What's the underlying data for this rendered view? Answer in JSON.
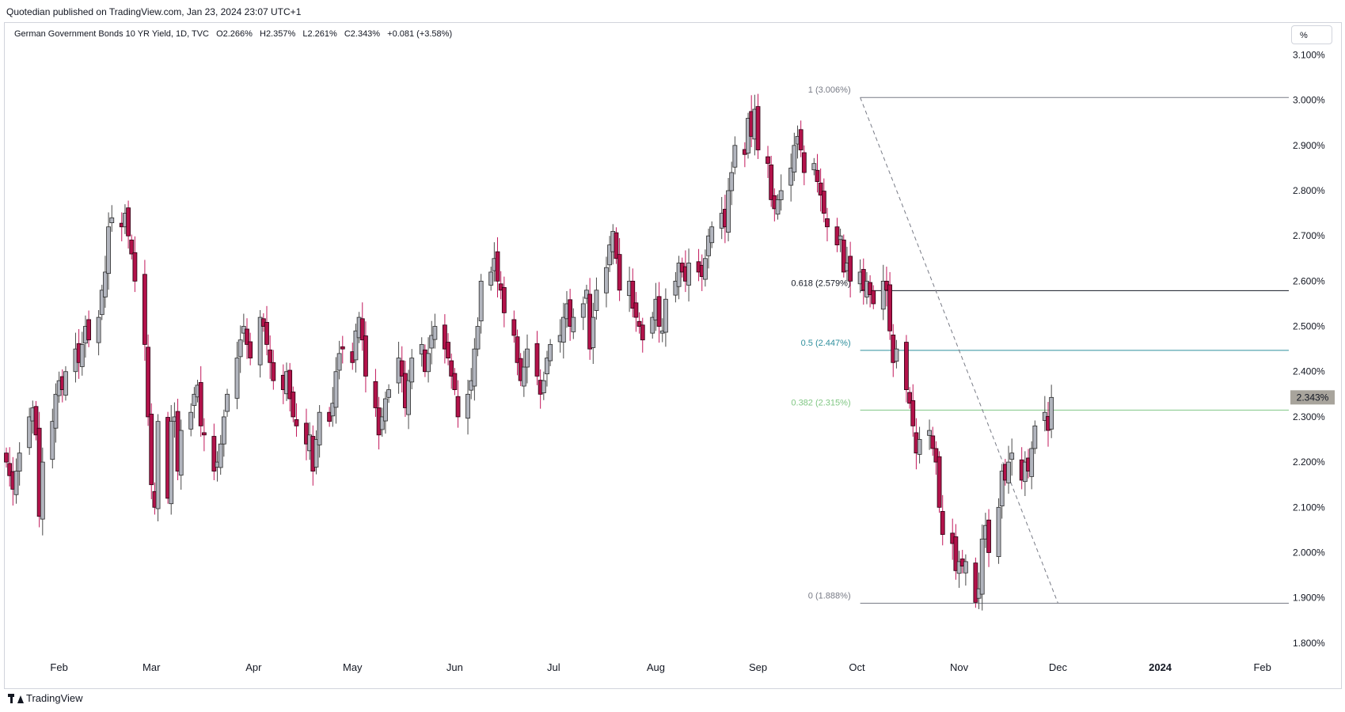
{
  "header": {
    "published": "Quotedian published on TradingView.com, Jan 23, 2024 23:07 UTC+1"
  },
  "legend": {
    "title": "German Government Bonds 10 YR Yield, 1D, TVC",
    "open": "O2.266%",
    "high": "H2.357%",
    "low": "L2.261%",
    "close": "C2.343%",
    "change": "+0.081 (+3.58%)"
  },
  "unit_button": "%",
  "brand": "TradingView",
  "colors": {
    "up_body": "#b2b5be",
    "down_body": "#b2124a",
    "down_wick": "#c2185b",
    "grid_line": "#787b86",
    "fib_half": "#2f8f9d",
    "fib_382": "#81c784",
    "price_tag": "#a8a49c"
  },
  "chart_data": {
    "type": "candlestick",
    "title": "German Government Bonds 10 YR Yield, 1D, TVC",
    "y_unit": "%",
    "ylim": [
      1.77,
      3.12
    ],
    "y_ticks": [
      "3.100%",
      "3.000%",
      "2.900%",
      "2.800%",
      "2.700%",
      "2.600%",
      "2.500%",
      "2.400%",
      "2.300%",
      "2.200%",
      "2.100%",
      "2.000%",
      "1.900%",
      "1.800%"
    ],
    "y_tick_values": [
      3.1,
      3.0,
      2.9,
      2.8,
      2.7,
      2.6,
      2.5,
      2.4,
      2.3,
      2.2,
      2.1,
      2.0,
      1.9,
      1.8
    ],
    "x_range": [
      "2023-01-16",
      "2024-02-09"
    ],
    "x_ticks": [
      {
        "label": "Feb",
        "date": "2023-02-01",
        "bold": false
      },
      {
        "label": "Mar",
        "date": "2023-03-01",
        "bold": false
      },
      {
        "label": "Apr",
        "date": "2023-04-01",
        "bold": false
      },
      {
        "label": "May",
        "date": "2023-05-01",
        "bold": false
      },
      {
        "label": "Jun",
        "date": "2023-06-01",
        "bold": false
      },
      {
        "label": "Jul",
        "date": "2023-07-01",
        "bold": false
      },
      {
        "label": "Aug",
        "date": "2023-08-01",
        "bold": false
      },
      {
        "label": "Sep",
        "date": "2023-09-01",
        "bold": false
      },
      {
        "label": "Oct",
        "date": "2023-10-01",
        "bold": false
      },
      {
        "label": "Nov",
        "date": "2023-11-01",
        "bold": false
      },
      {
        "label": "Dec",
        "date": "2023-12-01",
        "bold": false
      },
      {
        "label": "2024",
        "date": "2024-01-01",
        "bold": true
      },
      {
        "label": "Feb",
        "date": "2024-02-01",
        "bold": false
      }
    ],
    "price_label": {
      "text": "2.343%",
      "value": 2.343
    },
    "fib_levels": [
      {
        "label": "1 (3.006%)",
        "value": 3.006,
        "color": "#787b86"
      },
      {
        "label": "0.618 (2.579%)",
        "value": 2.579,
        "color": "#131722"
      },
      {
        "label": "0.5 (2.447%)",
        "value": 2.447,
        "color": "#2f8f9d"
      },
      {
        "label": "0.382 (2.315%)",
        "value": 2.315,
        "color": "#81c784"
      },
      {
        "label": "0 (1.888%)",
        "value": 1.888,
        "color": "#787b86"
      }
    ],
    "fib_start": "2023-10-02",
    "fib_end": "2024-02-09",
    "trend_line": {
      "from": {
        "date": "2023-10-02",
        "value": 3.006
      },
      "to": {
        "date": "2023-12-01",
        "value": 1.888
      }
    },
    "candle_start": "2023-01-16",
    "closes": [
      2.2,
      2.17,
      2.14,
      2.18,
      2.22,
      2.3,
      2.32,
      2.26,
      2.08,
      2.2,
      2.29,
      2.35,
      2.38,
      2.36,
      2.4,
      2.45,
      2.42,
      2.46,
      2.5,
      2.47,
      2.52,
      2.58,
      2.62,
      2.72,
      2.74,
      2.72,
      2.75,
      2.7,
      2.66,
      2.6,
      2.46,
      2.3,
      2.15,
      2.1,
      2.29,
      2.12,
      2.29,
      2.3,
      2.18,
      2.27,
      2.31,
      2.35,
      2.37,
      2.28,
      2.26,
      2.18,
      2.2,
      2.24,
      2.3,
      2.35,
      2.43,
      2.47,
      2.5,
      2.46,
      2.43,
      2.52,
      2.5,
      2.46,
      2.42,
      2.38,
      2.36,
      2.4,
      2.34,
      2.3,
      2.28,
      2.24,
      2.26,
      2.18,
      2.25,
      2.31,
      2.29,
      2.33,
      2.4,
      2.44,
      2.45,
      2.42,
      2.49,
      2.52,
      2.47,
      2.39,
      2.32,
      2.26,
      2.3,
      2.34,
      2.36,
      2.43,
      2.39,
      2.32,
      2.38,
      2.43,
      2.46,
      2.4,
      2.44,
      2.48,
      2.5,
      2.45,
      2.43,
      2.39,
      2.36,
      2.3,
      2.35,
      2.38,
      2.45,
      2.5,
      2.6,
      2.62,
      2.65,
      2.6,
      2.58,
      2.53,
      2.48,
      2.42,
      2.38,
      2.41,
      2.45,
      2.39,
      2.35,
      2.38,
      2.43,
      2.46,
      2.48,
      2.52,
      2.55,
      2.5,
      2.52,
      2.55,
      2.58,
      2.45,
      2.52,
      2.58,
      2.63,
      2.68,
      2.71,
      2.65,
      2.58,
      2.6,
      2.54,
      2.52,
      2.5,
      2.47,
      2.52,
      2.56,
      2.5,
      2.49,
      2.56,
      2.6,
      2.64,
      2.62,
      2.6,
      2.64,
      2.62,
      2.61,
      2.65,
      2.7,
      2.72,
      2.75,
      2.72,
      2.8,
      2.84,
      2.9,
      2.88,
      2.96,
      2.92,
      2.98,
      2.89,
      2.86,
      2.78,
      2.76,
      2.78,
      2.8,
      2.85,
      2.9,
      2.92,
      2.89,
      2.84,
      2.86,
      2.82,
      2.79,
      2.75,
      2.72,
      2.68,
      2.7,
      2.62,
      2.64,
      2.6,
      2.62,
      2.58,
      2.6,
      2.57,
      2.55,
      2.6,
      2.58,
      2.49,
      2.42,
      2.45,
      2.36,
      2.33,
      2.28,
      2.22,
      2.25,
      2.27,
      2.23,
      2.2,
      2.1,
      2.04,
      2.02,
      1.96,
      1.98,
      1.97,
      1.98,
      1.89,
      1.92,
      2.03,
      2.06,
      2.0,
      2.1,
      2.18,
      2.16,
      2.2,
      2.22,
      2.16,
      2.2,
      2.18,
      2.23,
      2.28,
      2.31,
      2.27,
      2.343
    ]
  }
}
